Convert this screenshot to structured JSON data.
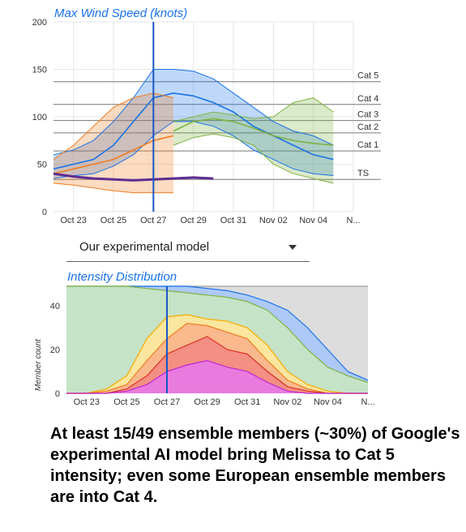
{
  "chart_data": [
    {
      "type": "line",
      "title": "Max Wind Speed (knots)",
      "ylim": [
        0,
        200
      ],
      "yticks": [
        0,
        50,
        100,
        150,
        200
      ],
      "xlim": [
        "2025-10-22",
        "2025-11-06"
      ],
      "xticks": [
        "Oct 23",
        "Oct 25",
        "Oct 27",
        "Oct 29",
        "Oct 31",
        "Nov 02",
        "Nov 04",
        "N..."
      ],
      "current_time": "2025-10-27",
      "category_thresholds": [
        {
          "label": "Cat 5",
          "value": 137
        },
        {
          "label": "Cat 4",
          "value": 113
        },
        {
          "label": "Cat 3",
          "value": 96
        },
        {
          "label": "Cat 2",
          "value": 83
        },
        {
          "label": "Cat 1",
          "value": 64
        },
        {
          "label": "TS",
          "value": 34
        }
      ],
      "series": [
        {
          "color": "#1a73e8",
          "x": [
            "2025-10-22",
            "2025-10-23",
            "2025-10-24",
            "2025-10-25",
            "2025-10-26",
            "2025-10-27",
            "2025-10-28",
            "2025-10-29",
            "2025-10-30",
            "2025-10-31",
            "2025-11-01",
            "2025-11-02",
            "2025-11-03",
            "2025-11-04",
            "2025-11-05"
          ],
          "upper": [
            60,
            65,
            75,
            95,
            120,
            150,
            150,
            148,
            140,
            125,
            110,
            95,
            85,
            80,
            70
          ],
          "median": [
            45,
            50,
            55,
            70,
            95,
            120,
            125,
            122,
            115,
            105,
            90,
            80,
            70,
            60,
            55
          ],
          "lower": [
            35,
            38,
            40,
            48,
            60,
            80,
            95,
            95,
            90,
            80,
            65,
            55,
            45,
            40,
            38
          ]
        },
        {
          "color": "#ef7d22",
          "x": [
            "2025-10-22",
            "2025-10-23",
            "2025-10-24",
            "2025-10-25",
            "2025-10-26",
            "2025-10-27",
            "2025-10-28"
          ],
          "upper": [
            55,
            70,
            90,
            110,
            120,
            125,
            120
          ],
          "median": [
            40,
            45,
            50,
            55,
            65,
            75,
            80
          ],
          "lower": [
            30,
            28,
            25,
            22,
            20,
            20,
            20
          ]
        },
        {
          "color": "#7cb342",
          "x": [
            "2025-10-28",
            "2025-10-29",
            "2025-10-30",
            "2025-10-31",
            "2025-11-01",
            "2025-11-02",
            "2025-11-03",
            "2025-11-04",
            "2025-11-05"
          ],
          "upper": [
            95,
            100,
            105,
            102,
            98,
            100,
            115,
            120,
            105
          ],
          "median": [
            85,
            95,
            98,
            95,
            88,
            80,
            75,
            72,
            70
          ],
          "lower": [
            70,
            78,
            82,
            78,
            70,
            50,
            40,
            35,
            30
          ]
        },
        {
          "color": "#5c2d91",
          "x": [
            "2025-10-22",
            "2025-10-23",
            "2025-10-24",
            "2025-10-25",
            "2025-10-26",
            "2025-10-27",
            "2025-10-28",
            "2025-10-29",
            "2025-10-30"
          ],
          "values": [
            40,
            37,
            35,
            34,
            33,
            34,
            35,
            36,
            35
          ]
        }
      ]
    },
    {
      "type": "area",
      "title": "Intensity Distribution",
      "ylabel": "Member count",
      "ylim": [
        0,
        49
      ],
      "yticks": [
        0,
        20,
        40
      ],
      "xlim": [
        "2025-10-22",
        "2025-11-06"
      ],
      "xticks": [
        "Oct 23",
        "Oct 25",
        "Oct 27",
        "Oct 29",
        "Oct 31",
        "Nov 02",
        "Nov 04",
        "N..."
      ],
      "current_time": "2025-10-27",
      "x": [
        "2025-10-22",
        "2025-10-23",
        "2025-10-24",
        "2025-10-25",
        "2025-10-26",
        "2025-10-27",
        "2025-10-28",
        "2025-10-29",
        "2025-10-30",
        "2025-10-31",
        "2025-11-01",
        "2025-11-02",
        "2025-11-03",
        "2025-11-04",
        "2025-11-05",
        "2025-11-06"
      ],
      "series": [
        {
          "color": "#d9d9d9",
          "values": [
            49,
            49,
            49,
            49,
            49,
            49,
            49,
            49,
            49,
            49,
            49,
            49,
            49,
            49,
            49,
            49
          ]
        },
        {
          "color": "#a8c7fa",
          "values": [
            49,
            49,
            49,
            49,
            49,
            49,
            49,
            48,
            47,
            45,
            42,
            38,
            30,
            20,
            10,
            6
          ]
        },
        {
          "color": "#c8e6c0",
          "values": [
            49,
            49,
            49,
            49,
            48,
            47,
            46,
            45,
            44,
            42,
            38,
            30,
            20,
            12,
            8,
            5
          ]
        },
        {
          "color": "#ffe599",
          "values": [
            0,
            0,
            2,
            8,
            25,
            35,
            36,
            34,
            33,
            30,
            22,
            10,
            4,
            1,
            0,
            0
          ]
        },
        {
          "color": "#f9b38b",
          "values": [
            0,
            0,
            1,
            4,
            15,
            25,
            32,
            31,
            28,
            25,
            15,
            6,
            2,
            0,
            0,
            0
          ]
        },
        {
          "color": "#f28b82",
          "values": [
            0,
            0,
            0,
            2,
            8,
            18,
            22,
            26,
            20,
            18,
            10,
            3,
            1,
            0,
            0,
            0
          ]
        },
        {
          "color": "#e879e8",
          "values": [
            0,
            0,
            0,
            1,
            4,
            10,
            13,
            15,
            12,
            10,
            5,
            1,
            0,
            0,
            0,
            0
          ]
        }
      ]
    }
  ],
  "dropdown": {
    "label": "Our experimental model"
  },
  "caption": "At least 15/49 ensemble members (~30%) of Google's experimental AI model bring Melissa to Cat 5 intensity; even some European ensemble members are into Cat 4."
}
